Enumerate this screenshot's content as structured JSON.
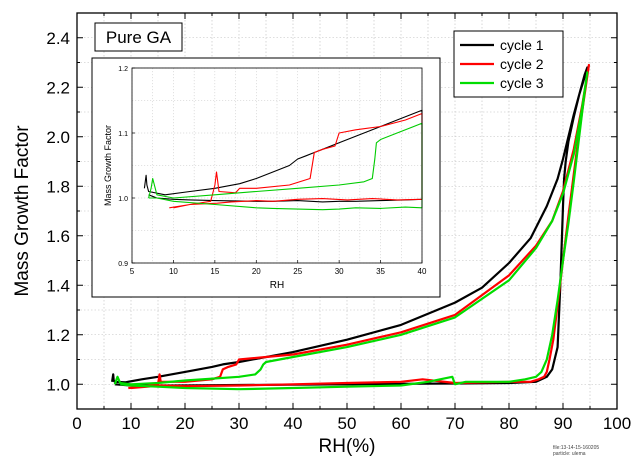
{
  "chart_data": [
    {
      "id": "main",
      "type": "line",
      "xlabel": "RH(%)",
      "ylabel": "Mass Growth Factor",
      "xlim": [
        0,
        100
      ],
      "ylim": [
        0.9,
        2.5
      ],
      "xticks": [
        0,
        10,
        20,
        30,
        40,
        50,
        60,
        70,
        80,
        90,
        100
      ],
      "yticks": [
        1.0,
        1.2,
        1.4,
        1.6,
        1.8,
        2.0,
        2.2,
        2.4
      ],
      "grid": true,
      "annotation": "Pure GA",
      "legend_position": "top-right",
      "series": [
        {
          "name": "cycle 1",
          "color": "#000000",
          "x": [
            6.5,
            6.7,
            6.8,
            7,
            9,
            12,
            15,
            20,
            25,
            27,
            30,
            40,
            50,
            60,
            70,
            75,
            80,
            84,
            87,
            89,
            90,
            91,
            92,
            93,
            94,
            94.5,
            94,
            93,
            92,
            91,
            90.5,
            90.2,
            90,
            89.5,
            89,
            88,
            87,
            85,
            80,
            70,
            60,
            50,
            40,
            30,
            20,
            15,
            10,
            7
          ],
          "y": [
            1.01,
            1.04,
            1.015,
            1.01,
            1.008,
            1.02,
            1.03,
            1.05,
            1.07,
            1.08,
            1.09,
            1.13,
            1.18,
            1.24,
            1.33,
            1.39,
            1.49,
            1.59,
            1.72,
            1.83,
            1.91,
            2.0,
            2.09,
            2.17,
            2.24,
            2.28,
            2.25,
            2.17,
            2.08,
            1.98,
            1.9,
            1.83,
            1.72,
            1.4,
            1.15,
            1.06,
            1.03,
            1.01,
            1.005,
            1.003,
            1.002,
            1.0,
            0.998,
            0.997,
            0.995,
            0.995,
            0.995,
            1.0
          ]
        },
        {
          "name": "cycle 2",
          "color": "#ff0000",
          "x": [
            9.5,
            12,
            15,
            15.3,
            15.5,
            16,
            17.5,
            20,
            25,
            26.5,
            27,
            28,
            29.5,
            30,
            40,
            50,
            60,
            70,
            80,
            85,
            88,
            90,
            92,
            93.5,
            94.8,
            94.2,
            93,
            92,
            91,
            90,
            89,
            88.2,
            87.5,
            87,
            86.5,
            85.5,
            84,
            80,
            70,
            64,
            60,
            50,
            40,
            30,
            20,
            15.5,
            13,
            10
          ],
          "y": [
            0.985,
            0.99,
            1.0,
            1.04,
            1.01,
            1.01,
            1.01,
            1.01,
            1.02,
            1.03,
            1.06,
            1.07,
            1.08,
            1.1,
            1.12,
            1.16,
            1.21,
            1.28,
            1.44,
            1.56,
            1.66,
            1.78,
            1.95,
            2.12,
            2.29,
            2.2,
            2.02,
            1.85,
            1.68,
            1.5,
            1.32,
            1.18,
            1.1,
            1.05,
            1.03,
            1.02,
            1.01,
            1.01,
            1.005,
            1.02,
            1.01,
            1.005,
            1.0,
            0.995,
            0.992,
            0.995,
            0.99,
            0.985
          ]
        },
        {
          "name": "cycle 3",
          "color": "#00dd00",
          "x": [
            7,
            7.5,
            8,
            10,
            15,
            20,
            30,
            33,
            34,
            34.5,
            35,
            40,
            50,
            60,
            70,
            80,
            85,
            88,
            90,
            92,
            93.5,
            94.5,
            94,
            93,
            92,
            91,
            90,
            89,
            88,
            87,
            86,
            85,
            83,
            80,
            75,
            72,
            70,
            69.5,
            65,
            60,
            50,
            40,
            30,
            20,
            15,
            10,
            8
          ],
          "y": [
            1.0,
            1.03,
            1.005,
            1.0,
            1.005,
            1.015,
            1.03,
            1.04,
            1.06,
            1.08,
            1.09,
            1.11,
            1.15,
            1.2,
            1.27,
            1.42,
            1.55,
            1.66,
            1.77,
            1.93,
            2.11,
            2.26,
            2.18,
            2.0,
            1.82,
            1.65,
            1.5,
            1.34,
            1.2,
            1.1,
            1.05,
            1.03,
            1.02,
            1.01,
            1.01,
            1.01,
            1.0,
            1.03,
            1.01,
            0.995,
            0.99,
            0.985,
            0.98,
            0.985,
            0.99,
            0.995,
            1.0
          ]
        }
      ]
    },
    {
      "id": "inset",
      "type": "line",
      "xlabel": "RH",
      "ylabel": "Mass Growth Factor",
      "xlim": [
        5,
        40
      ],
      "ylim": [
        0.9,
        1.2
      ],
      "xticks": [
        5,
        10,
        15,
        20,
        25,
        30,
        35,
        40
      ],
      "yticks": [
        0.9,
        1.0,
        1.1,
        1.2
      ],
      "grid": true,
      "series": [
        {
          "name": "cycle 1",
          "color": "#000000",
          "x": [
            6.5,
            6.7,
            6.8,
            7,
            9,
            12,
            15,
            18,
            20,
            22,
            24,
            25,
            26,
            27,
            28,
            30,
            32,
            35,
            37,
            40,
            40,
            38,
            35,
            32,
            30,
            28,
            25,
            22,
            20,
            15,
            12,
            10,
            8,
            7
          ],
          "y": [
            1.015,
            1.035,
            1.02,
            1.01,
            1.005,
            1.01,
            1.015,
            1.022,
            1.03,
            1.04,
            1.05,
            1.06,
            1.065,
            1.07,
            1.075,
            1.085,
            1.095,
            1.11,
            1.12,
            1.135,
            0.998,
            0.997,
            0.996,
            0.995,
            0.995,
            0.994,
            0.996,
            0.995,
            0.995,
            0.996,
            0.997,
            0.998,
            1.0,
            1.005
          ]
        },
        {
          "name": "cycle 2",
          "color": "#ff0000",
          "x": [
            9.5,
            12,
            14.5,
            15,
            15.2,
            15.5,
            17.5,
            18,
            20,
            24,
            26.5,
            27,
            28,
            29.5,
            30,
            32,
            35,
            38,
            40,
            40,
            37,
            34,
            31,
            28,
            25,
            22,
            20,
            17,
            15.3,
            12,
            10
          ],
          "y": [
            0.985,
            0.99,
            0.995,
            1.02,
            1.04,
            1.01,
            1.008,
            1.015,
            1.015,
            1.02,
            1.03,
            1.07,
            1.075,
            1.08,
            1.1,
            1.105,
            1.11,
            1.12,
            1.13,
            0.998,
            0.997,
            0.999,
            0.997,
            0.999,
            0.998,
            0.995,
            0.996,
            0.994,
            0.992,
            0.99,
            0.985
          ]
        },
        {
          "name": "cycle 3",
          "color": "#00cc00",
          "x": [
            7,
            7.3,
            7.5,
            8,
            10,
            15,
            20,
            25,
            30,
            33,
            34,
            34.3,
            34.5,
            35,
            37,
            40,
            40,
            38,
            35,
            32,
            30,
            28,
            25,
            22,
            20,
            15,
            10,
            8,
            7
          ],
          "y": [
            1.0,
            1.015,
            1.03,
            1.005,
            1.0,
            1.005,
            1.01,
            1.015,
            1.02,
            1.025,
            1.03,
            1.06,
            1.085,
            1.09,
            1.1,
            1.115,
            0.985,
            0.986,
            0.984,
            0.985,
            0.983,
            0.982,
            0.983,
            0.984,
            0.985,
            0.99,
            0.995,
            1.0,
            1.0
          ]
        }
      ]
    }
  ],
  "footnote": {
    "line1": "file:13-14-15-160205",
    "line2": "particle: ulema"
  }
}
